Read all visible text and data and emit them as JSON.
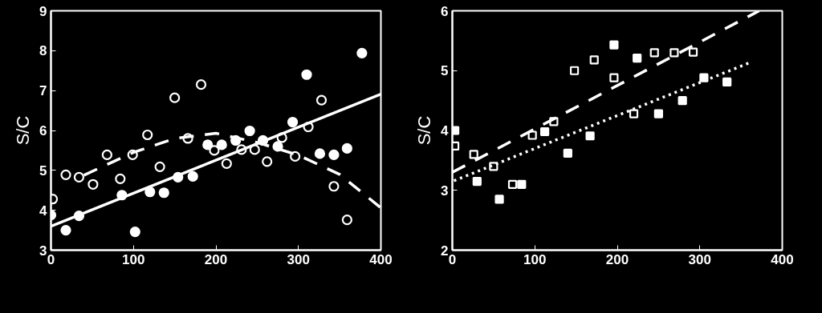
{
  "chart_data": [
    {
      "type": "scatter",
      "ylabel": "S/C",
      "xlim": [
        0,
        400
      ],
      "ylim": [
        3,
        9
      ],
      "xticks": [
        0,
        100,
        200,
        300,
        400
      ],
      "yticks": [
        3,
        4,
        5,
        6,
        7,
        8,
        9
      ],
      "grid": false,
      "series": [
        {
          "color": "#ffffff",
          "marker": "circle",
          "x": [
            0,
            18,
            34,
            86,
            102,
            120,
            137,
            154,
            172,
            190,
            207,
            224,
            241,
            257,
            275,
            293,
            310,
            326,
            343,
            359,
            377
          ],
          "values": [
            3.88,
            3.5,
            3.86,
            4.38,
            3.46,
            4.46,
            4.44,
            4.83,
            4.85,
            5.64,
            5.64,
            5.75,
            5.99,
            5.75,
            5.6,
            6.21,
            7.4,
            5.42,
            5.39,
            5.55,
            7.94
          ]
        },
        {
          "color": "#ffffff",
          "marker": "circle",
          "x": [
            2,
            18,
            34,
            51,
            68,
            84,
            99,
            117,
            132,
            150,
            166,
            182,
            198,
            213,
            231,
            247,
            262,
            280,
            296,
            312,
            328,
            343,
            359
          ],
          "values": [
            4.28,
            4.89,
            4.83,
            4.65,
            5.39,
            4.79,
            5.39,
            5.89,
            5.09,
            6.82,
            5.8,
            7.15,
            5.5,
            5.17,
            5.52,
            5.52,
            5.22,
            5.82,
            5.35,
            6.09,
            6.76,
            4.6,
            3.76
          ]
        },
        {
          "type": "line",
          "color": "#ffffff",
          "marker": "none",
          "line_style": "solid",
          "x": [
            0,
            400
          ],
          "values": [
            3.6,
            6.91
          ]
        },
        {
          "type": "line",
          "color": "#ffffff",
          "marker": "none",
          "line_style": "dashed",
          "x": [
            40,
            100,
            150,
            200,
            250,
            300,
            350,
            400
          ],
          "values": [
            4.88,
            5.45,
            5.8,
            5.93,
            5.7,
            5.38,
            4.9,
            4.06
          ]
        }
      ]
    },
    {
      "type": "scatter",
      "ylabel": "S/C",
      "xlim": [
        0,
        400
      ],
      "ylim": [
        2,
        6
      ],
      "xticks": [
        0,
        100,
        200,
        300,
        400
      ],
      "yticks": [
        2,
        3,
        4,
        5,
        6
      ],
      "grid": false,
      "series": [
        {
          "color": "#ffffff",
          "marker": "square",
          "x": [
            3,
            30,
            57,
            84,
            112,
            140,
            167,
            196,
            224,
            250,
            279,
            305,
            333
          ],
          "values": [
            4.0,
            3.15,
            2.85,
            3.1,
            3.98,
            3.62,
            3.91,
            5.43,
            5.21,
            4.28,
            4.5,
            4.88,
            4.81
          ]
        },
        {
          "color": "#ffffff",
          "marker": "square",
          "x": [
            3,
            26,
            50,
            73,
            97,
            123,
            148,
            172,
            196,
            220,
            245,
            269,
            292
          ],
          "values": [
            3.74,
            3.6,
            3.4,
            3.1,
            3.92,
            4.15,
            5.0,
            5.18,
            4.88,
            4.28,
            5.3,
            5.3,
            5.31
          ]
        },
        {
          "type": "line",
          "color": "#ffffff",
          "marker": "none",
          "line_style": "dotted",
          "x": [
            2,
            360
          ],
          "values": [
            3.16,
            5.13
          ]
        },
        {
          "type": "line",
          "color": "#ffffff",
          "marker": "none",
          "line_style": "dashed",
          "x": [
            0,
            372
          ],
          "values": [
            3.3,
            6.0
          ]
        }
      ]
    }
  ]
}
